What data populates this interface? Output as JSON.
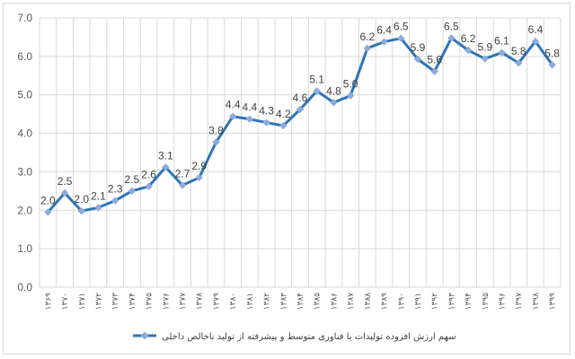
{
  "chart_data": {
    "type": "line",
    "x": [
      "۱۳۶۹",
      "۱۳۷۰",
      "۱۳۷۱",
      "۱۳۷۲",
      "۱۳۷۳",
      "۱۳۷۴",
      "۱۳۷۵",
      "۱۳۷۶",
      "۱۳۷۷",
      "۱۳۷۸",
      "۱۳۷۹",
      "۱۳۸۰",
      "۱۳۸۱",
      "۱۳۸۲",
      "۱۳۸۳",
      "۱۳۸۴",
      "۱۳۸۵",
      "۱۳۸۶",
      "۱۳۸۷",
      "۱۳۸۸",
      "۱۳۸۹",
      "۱۳۹۰",
      "۱۳۹۱",
      "۱۳۹۲",
      "۱۳۹۳",
      "۱۳۹۴",
      "۱۳۹۵",
      "۱۳۹۶",
      "۱۳۹۷",
      "۱۳۹۸",
      "۱۳۹۹"
    ],
    "series": [
      {
        "name": "سهم ارزش افزوده تولیدات با فناوری متوسط و پیشرفته از تولید ناخالص داخلی",
        "color": "#2e75b6",
        "marker_color": "#8eaadb",
        "values": [
          1.95,
          2.45,
          1.98,
          2.07,
          2.25,
          2.5,
          2.62,
          3.12,
          2.65,
          2.85,
          3.77,
          4.44,
          4.37,
          4.28,
          4.2,
          4.62,
          5.1,
          4.8,
          4.98,
          6.21,
          6.38,
          6.47,
          5.93,
          5.61,
          6.48,
          6.16,
          5.94,
          6.1,
          5.83,
          6.39,
          5.78
        ],
        "labels": [
          "2.0",
          "2.5",
          "2.0",
          "2.1",
          "2.3",
          "2.5",
          "2.6",
          "3.1",
          "2.7",
          "2.9",
          "3.8",
          "4.4",
          "4.4",
          "4.3",
          "4.2",
          "4.6",
          "5.1",
          "4.8",
          "5.0",
          "6.2",
          "6.4",
          "6.5",
          "5.9",
          "5.6",
          "6.5",
          "6.2",
          "5.9",
          "6.1",
          "5.8",
          "6.4",
          "5.8"
        ]
      }
    ],
    "ylim": [
      0,
      7
    ],
    "yticks": [
      "0.0",
      "1.0",
      "2.0",
      "3.0",
      "4.0",
      "5.0",
      "6.0",
      "7.0"
    ],
    "grid": true,
    "legend_position": "bottom"
  }
}
